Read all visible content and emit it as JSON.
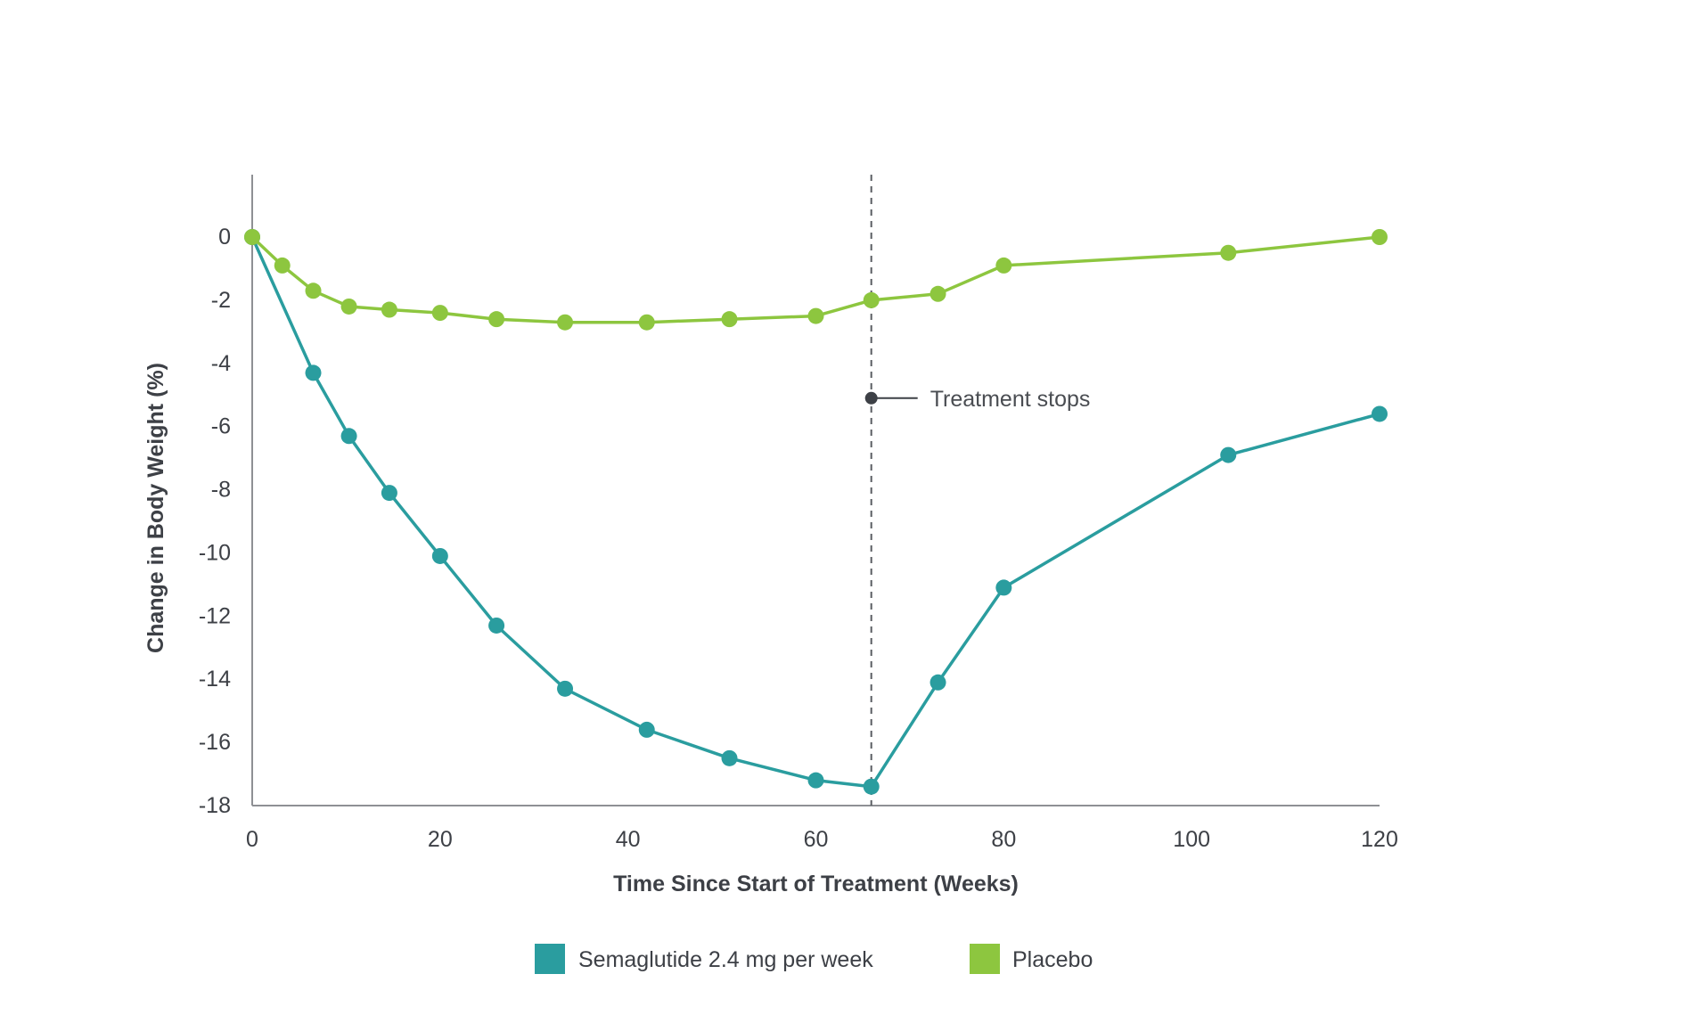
{
  "chart_data": {
    "type": "line",
    "title": "",
    "xlabel": "Time Since Start of Treatment (Weeks)",
    "ylabel": "Change in Body Weight (%)",
    "xlim": [
      0,
      120
    ],
    "ylim": [
      -18,
      2
    ],
    "xticks": [
      0,
      20,
      40,
      60,
      80,
      100,
      120
    ],
    "yticks": [
      0,
      -2,
      -4,
      -6,
      -8,
      -10,
      -12,
      -14,
      -16,
      -18
    ],
    "grid": false,
    "series": [
      {
        "name": "Semaglutide 2.4 mg per week",
        "color": "#2a9d9f",
        "x": [
          0,
          6.5,
          10.3,
          14.6,
          20,
          26,
          33.3,
          42,
          50.8,
          60,
          65.9,
          73,
          80,
          103.9,
          120
        ],
        "y": [
          0,
          -4.3,
          -6.3,
          -8.1,
          -10.1,
          -12.3,
          -14.3,
          -15.6,
          -16.5,
          -17.2,
          -17.4,
          -14.1,
          -11.1,
          -6.9,
          -5.6
        ]
      },
      {
        "name": "Placebo",
        "color": "#8dc63f",
        "x": [
          0,
          3.2,
          6.5,
          10.3,
          14.6,
          20,
          26,
          33.3,
          42,
          50.8,
          60,
          65.9,
          73,
          80,
          103.9,
          120
        ],
        "y": [
          0,
          -0.9,
          -1.7,
          -2.2,
          -2.3,
          -2.4,
          -2.6,
          -2.7,
          -2.7,
          -2.6,
          -2.5,
          -2.0,
          -1.8,
          -0.9,
          -0.5,
          0
        ]
      }
    ],
    "annotations": [
      {
        "text": "Treatment stops",
        "x": 65.9,
        "y": -5.1,
        "marker_color": "#3d4046"
      }
    ],
    "legend": {
      "placement": "bottom-center"
    }
  }
}
